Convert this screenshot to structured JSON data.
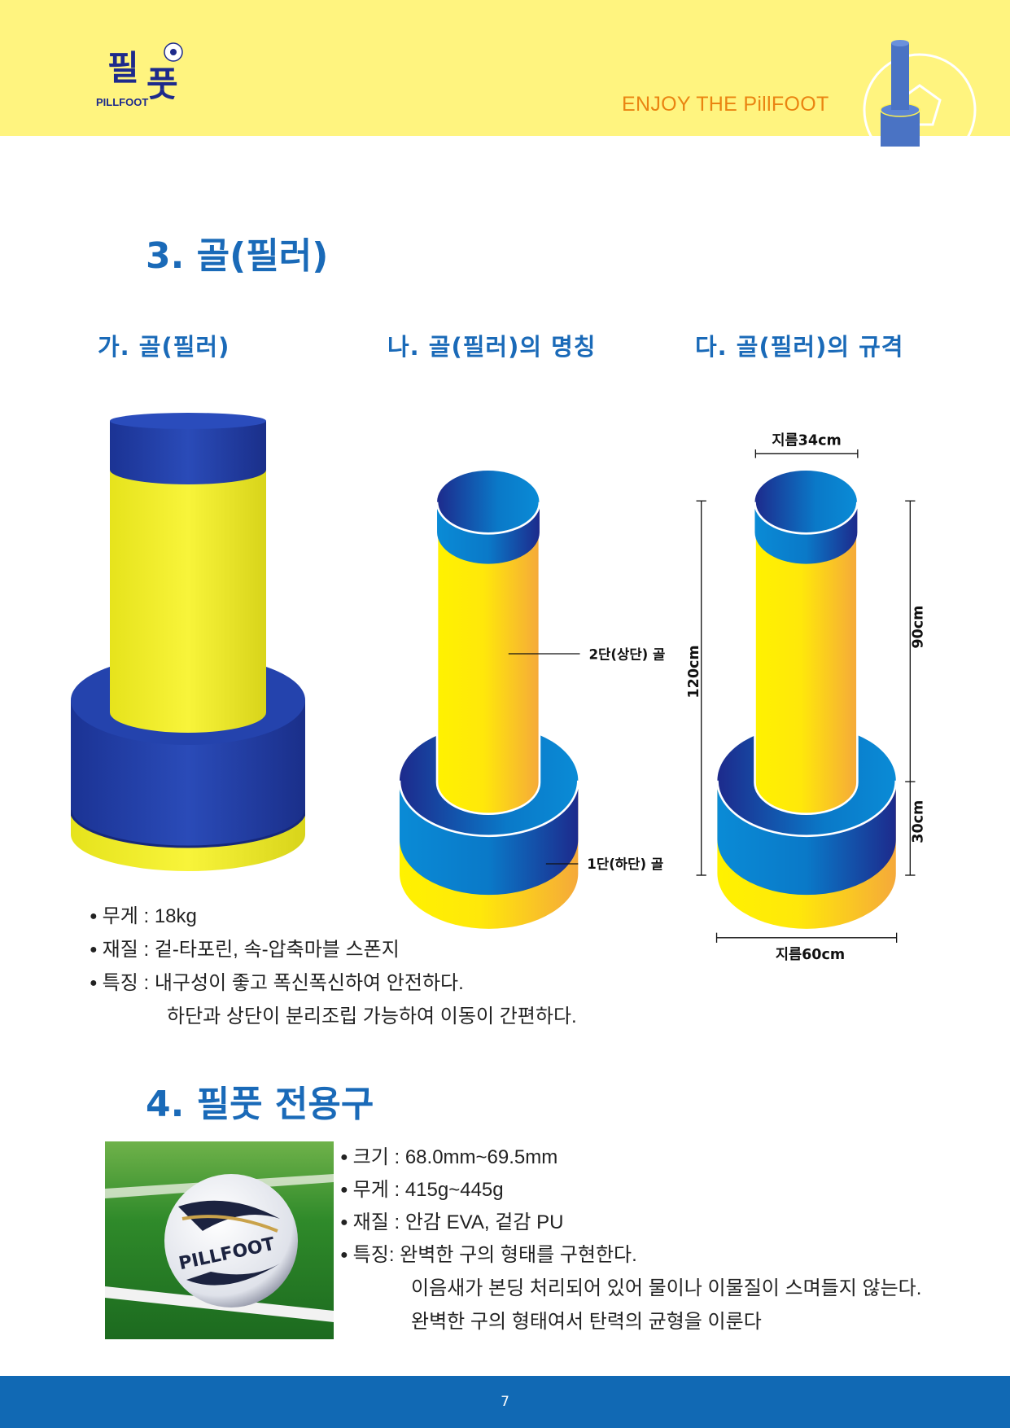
{
  "header": {
    "logo_text": "필풋",
    "logo_sub": "PILLFOOT",
    "tagline": "ENJOY THE PillFOOT",
    "colors": {
      "background": "#fff47f",
      "tagline": "#ea8411",
      "logo": "#1d2a8c"
    }
  },
  "section3": {
    "title": "3. 골(필러)",
    "sub_a": "가.  골(필러)",
    "sub_b": "나.  골(필러)의  명칭",
    "sub_c": "다.  골(필러)의  규격",
    "names": {
      "upper": "2단(상단) 골",
      "lower": "1단(하단) 골"
    },
    "specs": {
      "top_diameter": "지름34cm",
      "base_diameter": "지름60cm",
      "total_height": "120cm",
      "upper_height": "90cm",
      "lower_height": "30cm"
    },
    "bullets": [
      {
        "label": "무게",
        "text": "무게 : 18kg"
      },
      {
        "label": "재질",
        "text": "재질 : 겉-타포린, 속-압축마블 스폰지"
      },
      {
        "label": "특징",
        "text": "특징 : 내구성이 좋고 폭신폭신하여 안전하다."
      }
    ],
    "bullet_cont": "하단과 상단이 분리조립 가능하여 이동이 간편하다."
  },
  "section4": {
    "title": "4. 필풋 전용구",
    "ball_brand": "PILLFOOT",
    "bullets": [
      {
        "text": "크기 : 68.0mm~69.5mm"
      },
      {
        "text": "무게 : 415g~445g"
      },
      {
        "text": "재질 : 안감 EVA, 겉감 PU"
      },
      {
        "text": "특징: 완벽한 구의 형태를 구현한다."
      }
    ],
    "cont": [
      "이음새가 본딩 처리되어 있어 물이나 이물질이 스며들지 않는다.",
      "완벽한 구의 형태여서 탄력의 균형을 이룬다"
    ]
  },
  "footer": {
    "page_number": "7",
    "color": "#1169b4"
  },
  "colors": {
    "heading": "#1a6ab8",
    "pillar_yellow": "#fff200",
    "pillar_orange": "#f5a93a",
    "pillar_blue": "#0a8bd6",
    "pillar_navy": "#1d2a8c"
  }
}
